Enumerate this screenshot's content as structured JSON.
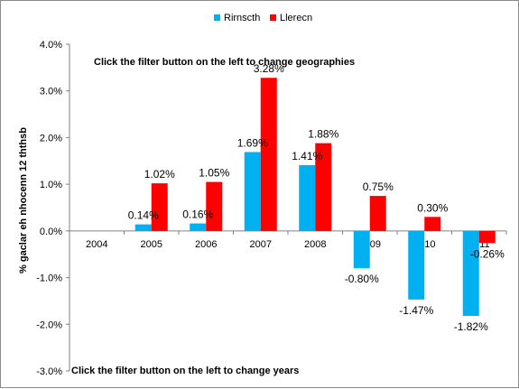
{
  "chart_data": {
    "type": "bar",
    "categories": [
      "2004",
      "2005",
      "2006",
      "2007",
      "2008",
      "2009",
      "2010",
      "2011"
    ],
    "series": [
      {
        "name": "Rirnscth",
        "color": "#00b0f0",
        "values": [
          null,
          0.14,
          0.16,
          1.69,
          1.41,
          -0.8,
          -1.47,
          -1.82
        ],
        "labels": [
          "",
          "0.14%",
          "0.16%",
          "1.69%",
          "1.41%",
          "-0.80%",
          "-1.47%",
          "-1.82%"
        ]
      },
      {
        "name": "Llerecn",
        "color": "#ff0000",
        "values": [
          null,
          1.02,
          1.05,
          3.28,
          1.88,
          0.75,
          0.3,
          -0.26
        ],
        "labels": [
          "",
          "1.02%",
          "1.05%",
          "3.28%",
          "1.88%",
          "0.75%",
          "0.30%",
          "-0.26%"
        ]
      }
    ],
    "ylabel": "% gaclar eh nhocenn 12 ththsb",
    "ylim": [
      -3.0,
      4.0
    ],
    "yticks": [
      4.0,
      3.0,
      2.0,
      1.0,
      0.0,
      -1.0,
      -2.0,
      -3.0
    ],
    "ytick_labels": [
      "4.0%",
      "3.0%",
      "2.0%",
      "1.0%",
      "0.0%",
      "-1.0%",
      "-2.0%",
      "-3.0%"
    ],
    "legend_position": "top-center",
    "grid": false
  },
  "notes": {
    "top": "Click the filter button  on the left to change geographies",
    "bottom": "Click the filter button  on the left to change years"
  }
}
